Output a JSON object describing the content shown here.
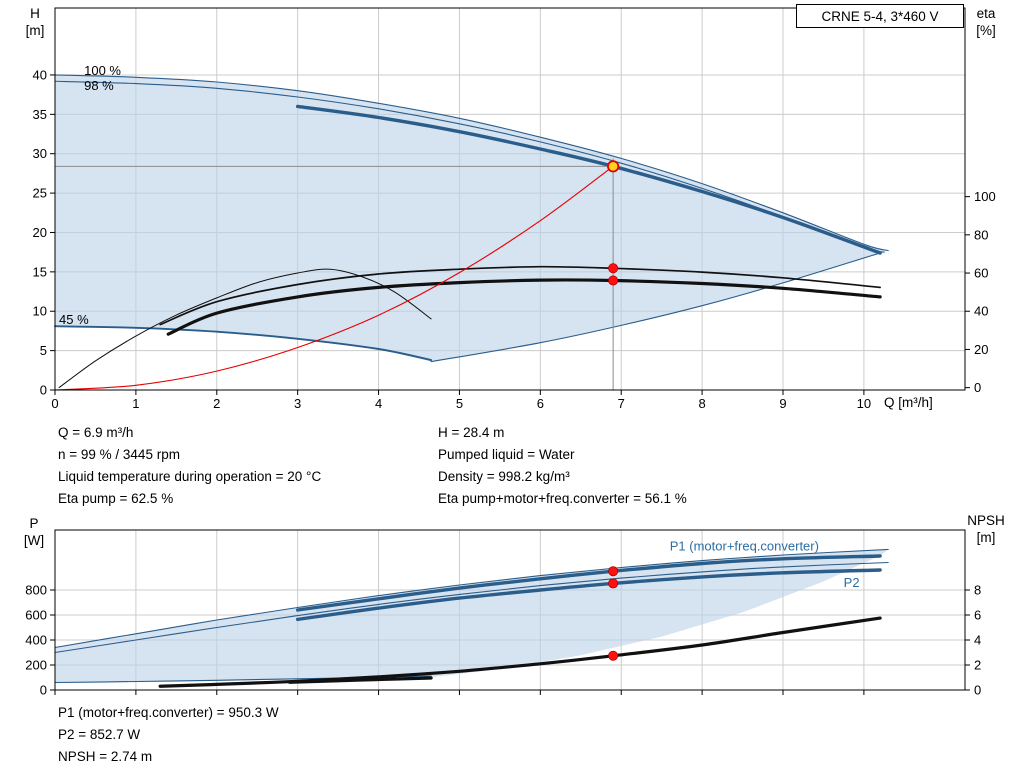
{
  "title_box": {
    "label": "CRNE 5-4, 3*460 V"
  },
  "info_top": {
    "left_lines": [
      "Q = 6.9 m³/h",
      "n = 99 % / 3445 rpm",
      "Liquid temperature during operation = 20 °C",
      "Eta pump = 62.5 %"
    ],
    "right_lines": [
      "H = 28.4 m",
      "Pumped liquid = Water",
      "Density = 998.2 kg/m³",
      "Eta pump+motor+freq.converter = 56.1 %"
    ]
  },
  "info_bottom": {
    "lines": [
      "P1 (motor+freq.converter) = 950.3 W",
      "P2 = 852.7 W",
      "NPSH = 2.74 m"
    ]
  },
  "chart_data": [
    {
      "type": "line",
      "title": "CRNE 5-4, 3*460 V",
      "x_axis": {
        "label": "Q [m³/h]",
        "min": 0,
        "max": 11.25,
        "ticks": [
          0,
          1,
          2,
          3,
          4,
          5,
          6,
          7,
          8,
          9,
          10
        ],
        "show_tick_labels": true
      },
      "left_axis": {
        "label": "H",
        "unit": "[m]",
        "min": 0,
        "max": 48.5,
        "ticks": [
          0,
          5,
          10,
          15,
          20,
          25,
          30,
          35,
          40
        ]
      },
      "right_axis": {
        "label": "eta",
        "unit": "[%]",
        "ticks": [
          0,
          20,
          40,
          60,
          80,
          100
        ],
        "left_at_zero": 0.3,
        "left_per_unit": 0.2425
      },
      "envelope": [
        [
          0,
          40
        ],
        [
          1,
          39.7
        ],
        [
          2,
          39.1
        ],
        [
          3,
          38
        ],
        [
          4,
          36.4
        ],
        [
          5,
          34.5
        ],
        [
          6,
          32.1
        ],
        [
          7,
          29.4
        ],
        [
          8,
          26.2
        ],
        [
          9,
          22.5
        ],
        [
          10,
          18.5
        ],
        [
          10.3,
          17.7
        ],
        [
          10.2,
          17.4
        ],
        [
          9,
          13.6
        ],
        [
          8,
          10.7
        ],
        [
          7,
          8.2
        ],
        [
          6,
          6
        ],
        [
          5,
          4.2
        ],
        [
          4.65,
          3.6
        ],
        [
          4,
          5.2
        ],
        [
          3,
          6.5
        ],
        [
          2,
          7.4
        ],
        [
          1,
          7.9
        ],
        [
          0,
          8.1
        ]
      ],
      "curves": [
        {
          "name": "speed-100-curve",
          "axis": "left",
          "style": "thin-blue",
          "points": [
            [
              0,
              40
            ],
            [
              1,
              39.7
            ],
            [
              2,
              39.1
            ],
            [
              3,
              38
            ],
            [
              4,
              36.4
            ],
            [
              5,
              34.5
            ],
            [
              6,
              32.1
            ],
            [
              7,
              29.4
            ],
            [
              8,
              26.2
            ],
            [
              9,
              22.5
            ],
            [
              10,
              18.5
            ],
            [
              10.3,
              17.7
            ]
          ]
        },
        {
          "name": "speed-98-curve",
          "axis": "left",
          "style": "thin-blue",
          "points": [
            [
              0,
              39.2
            ],
            [
              1,
              38.9
            ],
            [
              2,
              38.3
            ],
            [
              3,
              37.2
            ],
            [
              4,
              35.7
            ],
            [
              5,
              33.8
            ],
            [
              6,
              31.5
            ],
            [
              7,
              28.8
            ],
            [
              8,
              25.6
            ],
            [
              9,
              22
            ],
            [
              10,
              18.1
            ],
            [
              10.25,
              17.5
            ]
          ]
        },
        {
          "name": "duty-speed-curve",
          "axis": "left",
          "style": "thick-blue",
          "points": [
            [
              3,
              36
            ],
            [
              4,
              34.6
            ],
            [
              5,
              32.8
            ],
            [
              6,
              30.6
            ],
            [
              6.9,
              28.4
            ],
            [
              8,
              25.2
            ],
            [
              9,
              21.9
            ],
            [
              10.2,
              17.4
            ]
          ]
        },
        {
          "name": "speed-45-curve",
          "axis": "left",
          "style": "med-blue",
          "points": [
            [
              0,
              8.1
            ],
            [
              1,
              7.9
            ],
            [
              2,
              7.4
            ],
            [
              3,
              6.5
            ],
            [
              4,
              5.2
            ],
            [
              4.65,
              3.8
            ]
          ]
        },
        {
          "name": "min-speed-locus",
          "axis": "left",
          "style": "thin-blue",
          "points": [
            [
              4.65,
              3.6
            ],
            [
              6,
              6
            ],
            [
              7,
              8.2
            ],
            [
              8,
              10.7
            ],
            [
              9,
              13.6
            ],
            [
              10.2,
              17.4
            ]
          ]
        },
        {
          "name": "eta-pump-45-curve",
          "axis": "right",
          "style": "thin-black",
          "points": [
            [
              0.05,
              0
            ],
            [
              0.5,
              14
            ],
            [
              1,
              27
            ],
            [
              1.5,
              38
            ],
            [
              2,
              47
            ],
            [
              2.5,
              55
            ],
            [
              3,
              60
            ],
            [
              3.4,
              62
            ],
            [
              3.8,
              58
            ],
            [
              4.2,
              50
            ],
            [
              4.65,
              36
            ]
          ]
        },
        {
          "name": "eta-pump-curve",
          "axis": "right",
          "style": "med-black",
          "points": [
            [
              1.3,
              33
            ],
            [
              2,
              45
            ],
            [
              3,
              54
            ],
            [
              4,
              59.5
            ],
            [
              5,
              62
            ],
            [
              6,
              63.3
            ],
            [
              6.9,
              62.5
            ],
            [
              8,
              60.5
            ],
            [
              9,
              57.5
            ],
            [
              10.2,
              52.5
            ]
          ]
        },
        {
          "name": "eta-total-curve",
          "axis": "right",
          "style": "thick-black",
          "points": [
            [
              1.4,
              28
            ],
            [
              2,
              39
            ],
            [
              3,
              47.5
            ],
            [
              4,
              52.5
            ],
            [
              5,
              55
            ],
            [
              6,
              56.3
            ],
            [
              6.9,
              56.1
            ],
            [
              8,
              54.5
            ],
            [
              9,
              52
            ],
            [
              10.2,
              47.5
            ]
          ]
        },
        {
          "name": "system-curve",
          "axis": "left",
          "style": "thin-red",
          "points": [
            [
              0,
              0
            ],
            [
              1,
              0.6
            ],
            [
              2,
              2.4
            ],
            [
              3,
              5.4
            ],
            [
              4,
              9.5
            ],
            [
              5,
              14.9
            ],
            [
              6,
              21.5
            ],
            [
              6.9,
              28.4
            ]
          ]
        }
      ],
      "curve_labels": [
        {
          "text": "100 %",
          "q": 0.36,
          "value": 40.5,
          "axis": "left",
          "color": "#000000"
        },
        {
          "text": "98 %",
          "q": 0.36,
          "value": 38.6,
          "axis": "left",
          "color": "#000000"
        },
        {
          "text": "45 %",
          "q": 0.05,
          "value": 8.9,
          "axis": "left",
          "color": "#000000"
        }
      ],
      "crosshair": {
        "q": 6.9,
        "value": 28.4
      },
      "operating_point": {
        "q": 6.9,
        "value": 28.4,
        "axis": "left"
      },
      "dots": [
        {
          "q": 6.9,
          "value": 62.5,
          "axis": "right"
        },
        {
          "q": 6.9,
          "value": 56.1,
          "axis": "right"
        }
      ]
    },
    {
      "type": "line",
      "x_axis": {
        "label": "",
        "min": 0,
        "max": 11.25,
        "ticks": [
          0,
          1,
          2,
          3,
          4,
          5,
          6,
          7,
          8,
          9,
          10
        ],
        "show_tick_labels": false
      },
      "left_axis": {
        "label": "P",
        "unit": "[W]",
        "min": 0,
        "max": 1280,
        "ticks": [
          0,
          200,
          400,
          600,
          800
        ]
      },
      "right_axis": {
        "label": "NPSH",
        "unit": "[m]",
        "ticks": [
          0,
          2,
          4,
          6,
          8
        ],
        "left_at_zero": 0,
        "left_per_unit": 100
      },
      "envelope": [
        [
          0,
          340
        ],
        [
          1,
          450
        ],
        [
          2,
          560
        ],
        [
          3,
          660
        ],
        [
          4,
          755
        ],
        [
          5,
          840
        ],
        [
          6,
          915
        ],
        [
          7,
          980
        ],
        [
          8,
          1035
        ],
        [
          9,
          1080
        ],
        [
          10.3,
          1125
        ],
        [
          10.2,
          1075
        ],
        [
          9.5,
          868
        ],
        [
          8.5,
          621
        ],
        [
          7.5,
          427
        ],
        [
          6.5,
          278
        ],
        [
          5.5,
          168
        ],
        [
          4.65,
          102
        ],
        [
          4,
          95
        ],
        [
          3,
          85
        ],
        [
          2,
          73
        ],
        [
          1,
          63
        ],
        [
          0,
          55
        ]
      ],
      "curves": [
        {
          "name": "p1-max-speed-curve",
          "axis": "left",
          "style": "thin-blue",
          "points": [
            [
              0,
              340
            ],
            [
              1,
              450
            ],
            [
              2,
              560
            ],
            [
              3,
              660
            ],
            [
              4,
              755
            ],
            [
              5,
              840
            ],
            [
              6,
              915
            ],
            [
              7,
              980
            ],
            [
              8,
              1035
            ],
            [
              9,
              1080
            ],
            [
              10.3,
              1125
            ]
          ]
        },
        {
          "name": "p1-duty-curve",
          "axis": "left",
          "style": "thick-blue",
          "points": [
            [
              3,
              640
            ],
            [
              4,
              730
            ],
            [
              5,
              815
            ],
            [
              6,
              890
            ],
            [
              6.9,
              950.3
            ],
            [
              8,
              1012
            ],
            [
              9,
              1050
            ],
            [
              10.2,
              1072
            ]
          ]
        },
        {
          "name": "p2-max-speed-curve",
          "axis": "left",
          "style": "thin-blue",
          "points": [
            [
              0,
              300
            ],
            [
              1,
              400
            ],
            [
              2,
              500
            ],
            [
              3,
              595
            ],
            [
              4,
              685
            ],
            [
              5,
              765
            ],
            [
              6,
              835
            ],
            [
              7,
              895
            ],
            [
              8,
              945
            ],
            [
              9,
              985
            ],
            [
              10.3,
              1020
            ]
          ]
        },
        {
          "name": "p2-duty-curve",
          "axis": "left",
          "style": "thick-blue",
          "points": [
            [
              3,
              565
            ],
            [
              4,
              655
            ],
            [
              5,
              735
            ],
            [
              6,
              800
            ],
            [
              6.9,
              852.7
            ],
            [
              8,
              905
            ],
            [
              9,
              938
            ],
            [
              10.2,
              960
            ]
          ]
        },
        {
          "name": "p1-min-speed-curve",
          "axis": "left",
          "style": "thin-blue",
          "points": [
            [
              0,
              60
            ],
            [
              1,
              68
            ],
            [
              2,
              78
            ],
            [
              3,
              90
            ],
            [
              4,
              102
            ],
            [
              4.65,
              112
            ]
          ]
        },
        {
          "name": "p-min-speed-curve",
          "axis": "left",
          "style": "thick-black",
          "points": [
            [
              2.9,
              62
            ],
            [
              3.5,
              74
            ],
            [
              4,
              84
            ],
            [
              4.65,
              96
            ]
          ]
        },
        {
          "name": "npsh-curve",
          "axis": "right",
          "style": "thick-black",
          "points": [
            [
              1.3,
              0.3
            ],
            [
              2,
              0.45
            ],
            [
              3,
              0.7
            ],
            [
              4,
              1.05
            ],
            [
              5,
              1.5
            ],
            [
              6,
              2.1
            ],
            [
              6.9,
              2.74
            ],
            [
              8,
              3.6
            ],
            [
              9,
              4.6
            ],
            [
              10.2,
              5.75
            ]
          ]
        }
      ],
      "curve_labels": [
        {
          "text": "P1 (motor+freq.converter)",
          "q": 7.6,
          "value": 1150,
          "axis": "left",
          "color": "#2e6da4"
        },
        {
          "text": "P2",
          "q": 9.75,
          "value": 855,
          "axis": "left",
          "color": "#2e6da4"
        }
      ],
      "dots": [
        {
          "q": 6.9,
          "value": 950.3,
          "axis": "left"
        },
        {
          "q": 6.9,
          "value": 852.7,
          "axis": "left"
        },
        {
          "q": 6.9,
          "value": 2.74,
          "axis": "right"
        }
      ]
    }
  ]
}
